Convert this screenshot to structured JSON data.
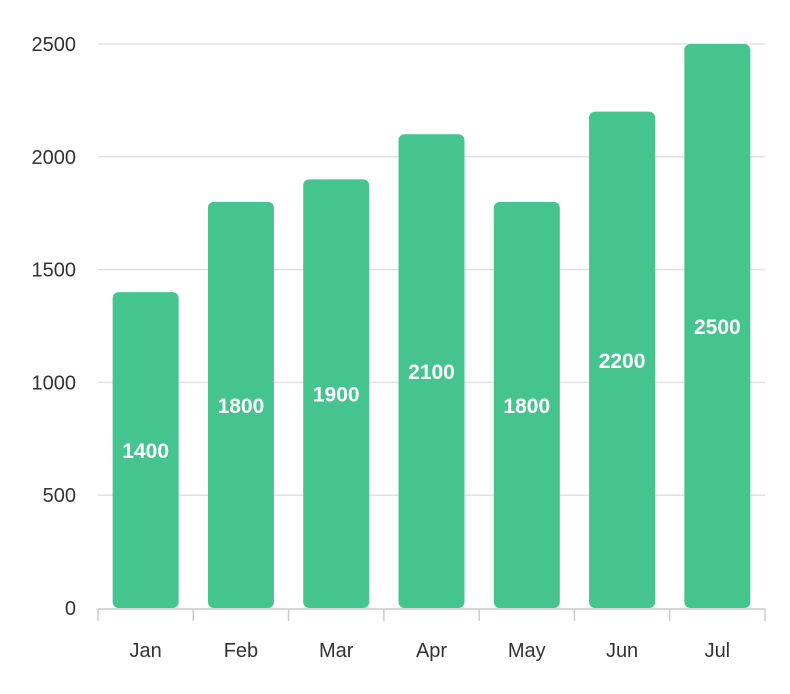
{
  "chart_data": {
    "type": "bar",
    "categories": [
      "Jan",
      "Feb",
      "Mar",
      "Apr",
      "May",
      "Jun",
      "Jul"
    ],
    "series": [
      {
        "values": [
          1400,
          1800,
          1900,
          2100,
          1800,
          2200,
          2500
        ]
      }
    ],
    "ylim": [
      0,
      2500
    ],
    "yticks": [
      0,
      500,
      1000,
      1500,
      2000,
      2500
    ],
    "title": "",
    "xlabel": "",
    "ylabel": "",
    "grid": true,
    "data_labels": true,
    "colors": {
      "bar": "#45C490",
      "grid": "#e2e2e2",
      "axis": "#cccccc",
      "label": "#ffffff",
      "tick_text": "#333333"
    }
  }
}
